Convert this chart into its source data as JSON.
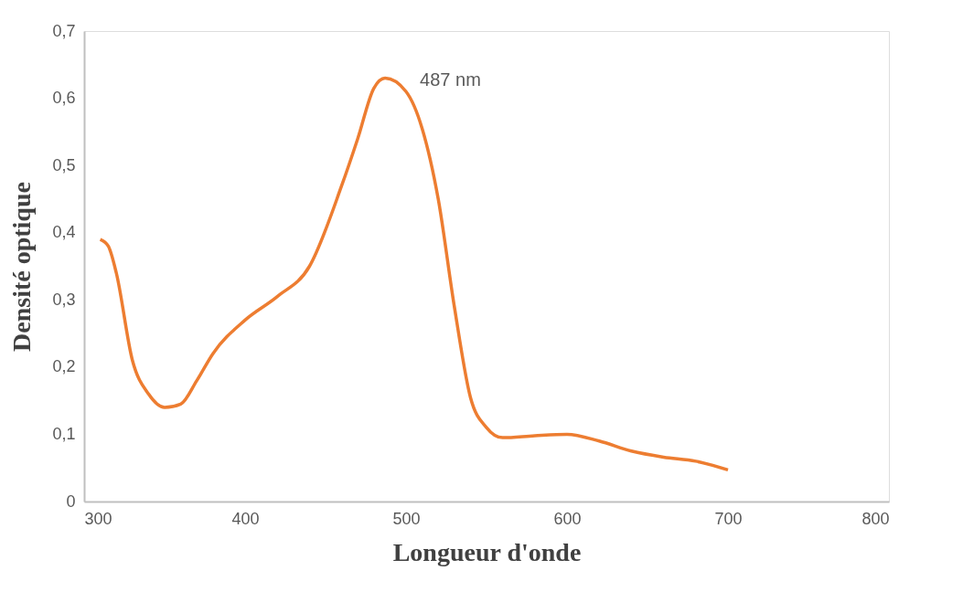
{
  "chart_data": {
    "type": "line",
    "xlabel": "Longueur d'onde",
    "ylabel": "Densité optique",
    "xlim": [
      300,
      800
    ],
    "xticks": [
      300,
      400,
      500,
      600,
      700,
      800
    ],
    "ylim": [
      0,
      0.7
    ],
    "yticks": [
      0,
      {
        "value": 0.1,
        "label": "0,1"
      },
      {
        "value": 0.2,
        "label": "0,2"
      },
      {
        "value": 0.3,
        "label": "0,3"
      },
      {
        "value": 0.4,
        "label": "0,4"
      },
      {
        "value": 0.5,
        "label": "0,5"
      },
      {
        "value": 0.6,
        "label": "0,6"
      },
      {
        "value": 0.7,
        "label": "0,7"
      }
    ],
    "grid": false,
    "legend": false,
    "marker": "none",
    "line_style": "solid",
    "x": [
      310,
      315,
      320,
      330,
      340,
      350,
      360,
      370,
      380,
      400,
      420,
      440,
      460,
      470,
      480,
      487,
      500,
      510,
      520,
      530,
      540,
      550,
      560,
      580,
      600,
      620,
      640,
      660,
      680,
      700
    ],
    "series": [
      {
        "color": "#ed7d31",
        "values": [
          0.39,
          0.38,
          0.34,
          0.21,
          0.16,
          0.14,
          0.145,
          0.18,
          0.22,
          0.27,
          0.305,
          0.35,
          0.47,
          0.54,
          0.615,
          0.63,
          0.61,
          0.555,
          0.45,
          0.29,
          0.155,
          0.11,
          0.095,
          0.098,
          0.1,
          0.09,
          0.075,
          0.066,
          0.06,
          0.047
        ]
      }
    ],
    "annotations": [
      {
        "text": "487 nm",
        "x": 487,
        "y": 0.63
      }
    ]
  }
}
